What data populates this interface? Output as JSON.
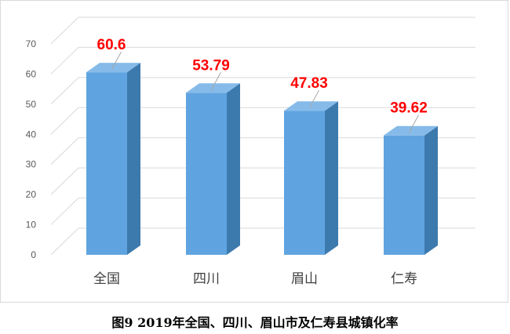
{
  "chart_data": {
    "type": "bar",
    "style": "3d-column",
    "categories": [
      "全国",
      "四川",
      "眉山",
      "仁寿"
    ],
    "values": [
      60.6,
      53.79,
      47.83,
      39.62
    ],
    "value_labels": [
      "60.6",
      "53.79",
      "47.83",
      "39.62"
    ],
    "title": "",
    "xlabel": "",
    "ylabel": "",
    "ylim": [
      0,
      70
    ],
    "yticks": [
      "0",
      "10",
      "20",
      "30",
      "40",
      "50",
      "60",
      "70"
    ],
    "grid": true,
    "legend": "none"
  },
  "caption": "图9 2019年全国、四川、眉山市及仁寿县城镇化率",
  "colors": {
    "bar_front": "#5fa4e0",
    "bar_side": "#3c7aae",
    "bar_top": "#86bbe9",
    "data_label": "#ff0000",
    "grid": "#d9d9d9",
    "leader_line": "#a6a6a6"
  }
}
